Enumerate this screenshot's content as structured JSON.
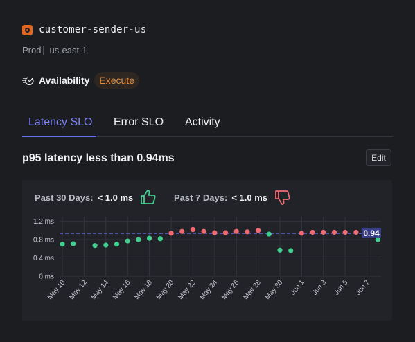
{
  "header": {
    "service_name": "customer-sender-us",
    "logo_icon": "service-hexagon-icon"
  },
  "meta": {
    "env": "Prod",
    "region": "us-east-1"
  },
  "availability": {
    "label": "Availability",
    "badge": "Execute",
    "badge_color": "#e48c3a"
  },
  "tabs": [
    {
      "label": "Latency SLO",
      "active": true
    },
    {
      "label": "Error SLO",
      "active": false
    },
    {
      "label": "Activity",
      "active": false
    }
  ],
  "slo": {
    "title": "p95 latency less than 0.94ms",
    "edit_label": "Edit"
  },
  "stats": {
    "past30": {
      "label": "Past 30 Days:",
      "value": "< 1.0 ms",
      "icon": "thumbs-up-icon",
      "color": "#3ecf8e"
    },
    "past7": {
      "label": "Past 7 Days:",
      "value": "< 1.0 ms",
      "icon": "thumbs-down-icon",
      "color": "#f06a73"
    }
  },
  "chart_data": {
    "type": "scatter",
    "threshold": 0.94,
    "threshold_label": "0.94",
    "ylim": [
      0,
      1.3
    ],
    "y_ticks": [
      {
        "v": 0,
        "label": "0 ms"
      },
      {
        "v": 0.4,
        "label": "0.4 ms"
      },
      {
        "v": 0.8,
        "label": "0.8 ms"
      },
      {
        "v": 1.2,
        "label": "1.2 ms"
      }
    ],
    "x_ticks": [
      {
        "i": 0,
        "label": "May 10"
      },
      {
        "i": 2,
        "label": "May 12"
      },
      {
        "i": 4,
        "label": "May 14"
      },
      {
        "i": 6,
        "label": "May 16"
      },
      {
        "i": 8,
        "label": "May 18"
      },
      {
        "i": 10,
        "label": "May 20"
      },
      {
        "i": 12,
        "label": "May 22"
      },
      {
        "i": 14,
        "label": "May 24"
      },
      {
        "i": 16,
        "label": "May 26"
      },
      {
        "i": 18,
        "label": "May 28"
      },
      {
        "i": 20,
        "label": "May 30"
      },
      {
        "i": 22,
        "label": "Jun 1"
      },
      {
        "i": 24,
        "label": "Jun 3"
      },
      {
        "i": 26,
        "label": "Jun 5"
      },
      {
        "i": 28,
        "label": "Jun 7"
      }
    ],
    "points": [
      {
        "i": 0,
        "v": 0.7
      },
      {
        "i": 1,
        "v": 0.71
      },
      {
        "i": 3,
        "v": 0.67
      },
      {
        "i": 4,
        "v": 0.68
      },
      {
        "i": 5,
        "v": 0.7
      },
      {
        "i": 6,
        "v": 0.77
      },
      {
        "i": 7,
        "v": 0.8
      },
      {
        "i": 8,
        "v": 0.83
      },
      {
        "i": 9,
        "v": 0.82
      },
      {
        "i": 10,
        "v": 0.94
      },
      {
        "i": 11,
        "v": 0.98
      },
      {
        "i": 12,
        "v": 1.02
      },
      {
        "i": 13,
        "v": 0.98
      },
      {
        "i": 14,
        "v": 0.95
      },
      {
        "i": 15,
        "v": 0.95
      },
      {
        "i": 16,
        "v": 0.98
      },
      {
        "i": 17,
        "v": 0.97
      },
      {
        "i": 18,
        "v": 1.0
      },
      {
        "i": 19,
        "v": 0.92
      },
      {
        "i": 20,
        "v": 0.57
      },
      {
        "i": 21,
        "v": 0.56
      },
      {
        "i": 22,
        "v": 0.94
      },
      {
        "i": 23,
        "v": 0.96
      },
      {
        "i": 24,
        "v": 0.96
      },
      {
        "i": 25,
        "v": 0.96
      },
      {
        "i": 26,
        "v": 0.96
      },
      {
        "i": 27,
        "v": 0.96
      },
      {
        "i": 28,
        "v": 0.96
      },
      {
        "i": 29,
        "v": 0.8
      }
    ],
    "colors": {
      "good": "#3ecf8e",
      "bad": "#f06a73",
      "threshold": "#6d73f0",
      "grid": "#33353c"
    }
  }
}
